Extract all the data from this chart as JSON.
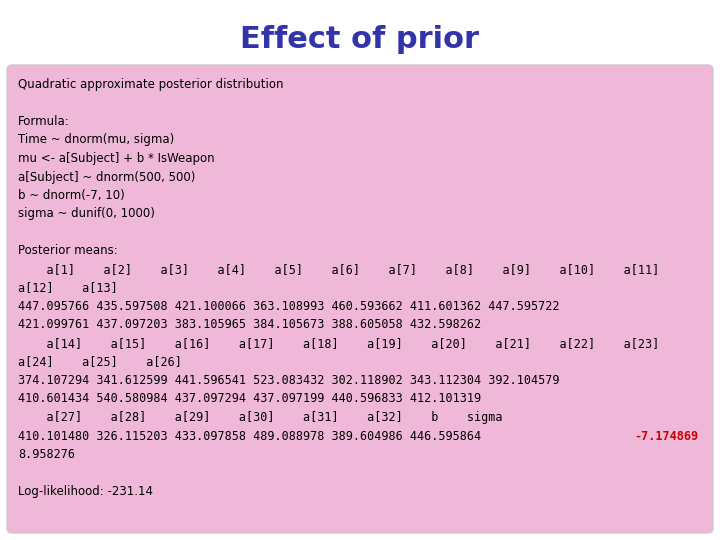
{
  "title": "Effect of prior",
  "title_color": "#3333aa",
  "title_fontsize": 22,
  "bg_outer": "#ffffff",
  "bg_inner": "#f0b8d8",
  "border_outer_color": "#d4c84a",
  "highlight_color": "#cc0000",
  "text_lines": [
    {
      "text": "Quadratic approximate posterior distribution",
      "mono": false
    },
    {
      "text": "",
      "mono": false
    },
    {
      "text": "Formula:",
      "mono": false
    },
    {
      "text": "Time ~ dnorm(mu, sigma)",
      "mono": false
    },
    {
      "text": "mu <- a[Subject] + b * IsWeapon",
      "mono": false
    },
    {
      "text": "a[Subject] ~ dnorm(500, 500)",
      "mono": false
    },
    {
      "text": "b ~ dnorm(-7, 10)",
      "mono": false
    },
    {
      "text": "sigma ~ dunif(0, 1000)",
      "mono": false
    },
    {
      "text": "",
      "mono": false
    },
    {
      "text": "Posterior means:",
      "mono": false
    },
    {
      "text": "    a[1]    a[2]    a[3]    a[4]    a[5]    a[6]    a[7]    a[8]    a[9]    a[10]    a[11]",
      "mono": true
    },
    {
      "text": "a[12]    a[13]",
      "mono": true
    },
    {
      "text": "447.095766 435.597508 421.100066 363.108993 460.593662 411.601362 447.595722",
      "mono": true
    },
    {
      "text": "421.099761 437.097203 383.105965 384.105673 388.605058 432.598262",
      "mono": true
    },
    {
      "text": "    a[14]    a[15]    a[16]    a[17]    a[18]    a[19]    a[20]    a[21]    a[22]    a[23]",
      "mono": true
    },
    {
      "text": "a[24]    a[25]    a[26]",
      "mono": true
    },
    {
      "text": "374.107294 341.612599 441.596541 523.083432 302.118902 343.112304 392.104579",
      "mono": true
    },
    {
      "text": "410.601434 540.580984 437.097294 437.097199 440.596833 412.101319",
      "mono": true
    },
    {
      "text": "    a[27]    a[28]    a[29]    a[30]    a[31]    a[32]    b    sigma",
      "mono": true
    },
    {
      "text": "410.101480 326.115203 433.097858 489.088978 389.604986 446.595864  -7.174869",
      "mono": true,
      "highlight_word": "-7.174869"
    },
    {
      "text": "8.958276",
      "mono": true
    },
    {
      "text": "",
      "mono": false
    },
    {
      "text": "Log-likelihood: -231.14",
      "mono": false
    }
  ]
}
